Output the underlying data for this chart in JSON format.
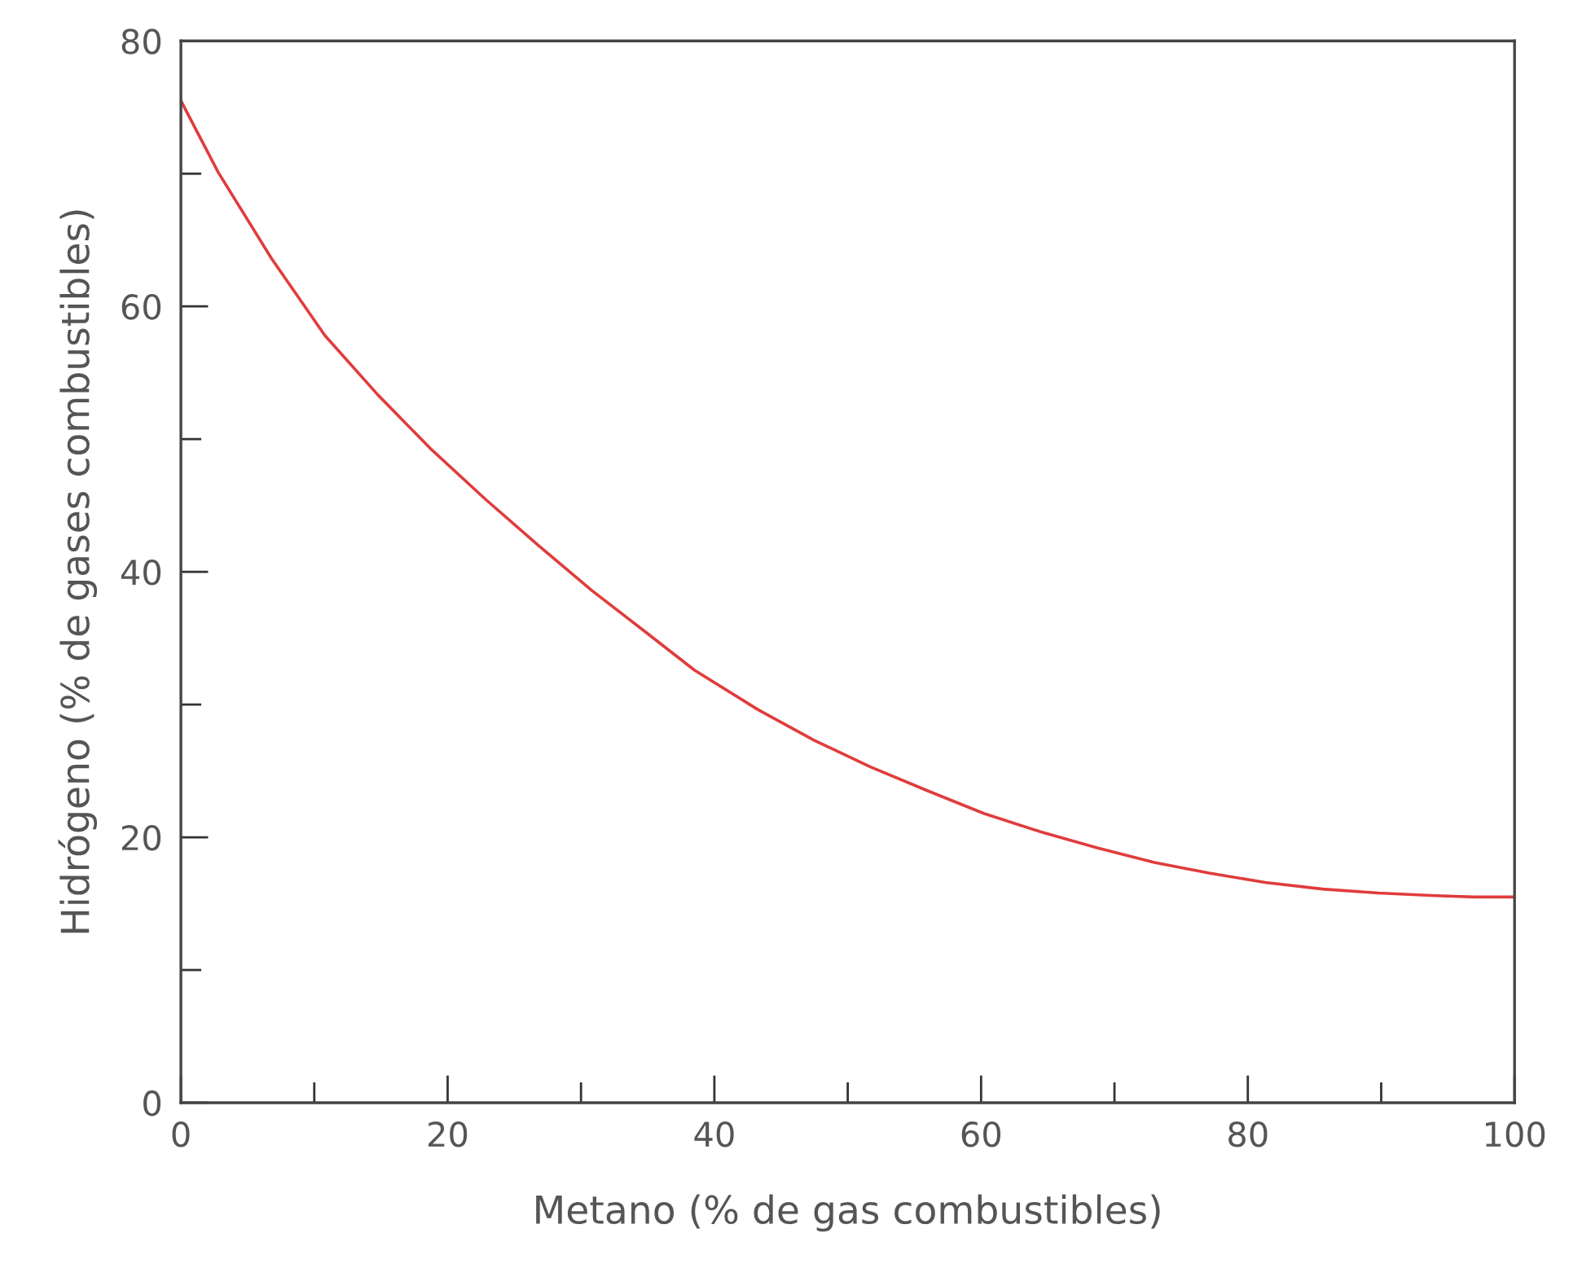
{
  "chart_data": {
    "type": "line",
    "xlabel": "Metano (% de gas combustibles)",
    "ylabel": "Hidrógeno (% de gases combustibles)",
    "x": [
      0,
      2.8,
      6.8,
      10.8,
      14.8,
      18.8,
      22.8,
      26.8,
      30.8,
      34.8,
      38.5,
      43.3,
      47.5,
      51.7,
      56,
      60.2,
      64.5,
      68.7,
      73,
      77.1,
      81.3,
      85.6,
      89.8,
      94.1,
      97,
      100
    ],
    "series": [
      {
        "color": "#e03c3c",
        "values": [
          75.5,
          70.1,
          63.6,
          57.8,
          53.3,
          49.2,
          45.5,
          42.0,
          38.6,
          35.5,
          32.6,
          29.6,
          27.3,
          25.3,
          23.5,
          21.8,
          20.4,
          19.2,
          18.1,
          17.3,
          16.6,
          16.1,
          15.8,
          15.6,
          15.5,
          15.5
        ]
      }
    ],
    "xlim": [
      0,
      100
    ],
    "ylim": [
      0,
      80
    ],
    "xticks": [
      0,
      {
        "value": 10,
        "label": null
      },
      20,
      {
        "value": 30,
        "label": null
      },
      40,
      {
        "value": 50,
        "label": null
      },
      60,
      {
        "value": 70,
        "label": null
      },
      80,
      {
        "value": 90,
        "label": null
      },
      100
    ],
    "yticks": [
      0,
      {
        "value": 10,
        "label": null
      },
      20,
      {
        "value": 30,
        "label": null
      },
      40,
      {
        "value": 50,
        "label": null
      },
      60,
      {
        "value": 70,
        "label": null
      },
      80
    ],
    "grid": false,
    "line_style": "solid",
    "marker": "none"
  }
}
